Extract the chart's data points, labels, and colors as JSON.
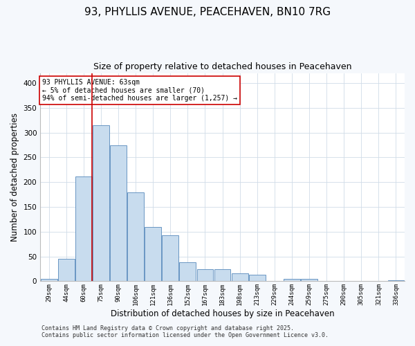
{
  "title": "93, PHYLLIS AVENUE, PEACEHAVEN, BN10 7RG",
  "subtitle": "Size of property relative to detached houses in Peacehaven",
  "xlabel": "Distribution of detached houses by size in Peacehaven",
  "ylabel": "Number of detached properties",
  "bin_labels": [
    "29sqm",
    "44sqm",
    "60sqm",
    "75sqm",
    "90sqm",
    "106sqm",
    "121sqm",
    "136sqm",
    "152sqm",
    "167sqm",
    "183sqm",
    "198sqm",
    "213sqm",
    "229sqm",
    "244sqm",
    "259sqm",
    "275sqm",
    "290sqm",
    "305sqm",
    "321sqm",
    "336sqm"
  ],
  "bar_values": [
    5,
    45,
    212,
    315,
    274,
    179,
    110,
    93,
    38,
    24,
    24,
    16,
    13,
    0,
    5,
    5,
    0,
    0,
    0,
    0,
    2
  ],
  "bar_color": "#c8dcee",
  "bar_edge_color": "#5588bb",
  "vline_x_index": 2,
  "vline_color": "#cc0000",
  "annotation_text": "93 PHYLLIS AVENUE: 63sqm\n← 5% of detached houses are smaller (70)\n94% of semi-detached houses are larger (1,257) →",
  "annotation_box_color": "#ffffff",
  "annotation_box_edge": "#cc0000",
  "ylim": [
    0,
    420
  ],
  "yticks": [
    0,
    50,
    100,
    150,
    200,
    250,
    300,
    350,
    400
  ],
  "footer1": "Contains HM Land Registry data © Crown copyright and database right 2025.",
  "footer2": "Contains public sector information licensed under the Open Government Licence v3.0.",
  "bg_color": "#f5f8fc",
  "plot_bg_color": "#ffffff",
  "title_fontsize": 11,
  "subtitle_fontsize": 9,
  "grid_color": "#d0dce8"
}
